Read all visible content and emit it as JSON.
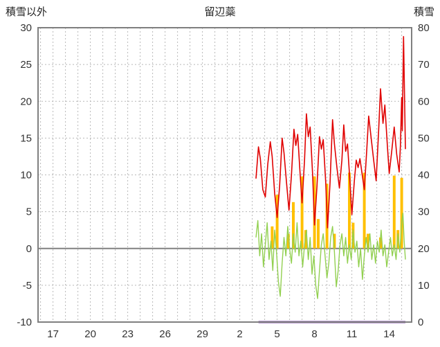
{
  "header": {
    "left_axis_title": "積雪以外",
    "chart_title": "留辺蘂",
    "right_axis_title": "積雪"
  },
  "chart_data": {
    "type": "line",
    "title": "留辺蘂",
    "left_axis": {
      "label": "積雪以外",
      "min": -10,
      "max": 30,
      "tick_step": 5,
      "ticks": [
        30,
        25,
        20,
        15,
        10,
        5,
        0,
        -5,
        -10
      ]
    },
    "right_axis": {
      "label": "積雪",
      "min": 0,
      "max": 80,
      "tick_step": 10,
      "ticks": [
        80,
        70,
        60,
        50,
        40,
        30,
        20,
        10,
        0
      ]
    },
    "x_axis": {
      "min": 15.8,
      "max": 45.8,
      "day_grid_step": 1,
      "tick_positions": [
        17,
        20,
        23,
        26,
        29,
        32,
        35,
        38,
        41,
        44
      ],
      "tick_labels": [
        "17",
        "20",
        "23",
        "26",
        "29",
        "2",
        "5",
        "8",
        "11",
        "14"
      ]
    },
    "grid": {
      "color": "#b8b8b8",
      "dash": "2,3"
    },
    "frame_color": "#7f7f7f",
    "text_color": "#333333",
    "zero_line": {
      "value": 0,
      "color": "#808080",
      "width": 2
    },
    "series": [
      {
        "name": "orange-bars",
        "type": "bar",
        "axis": "left",
        "color": "#ffc000",
        "bar_width_days": 0.22,
        "baseline": 0,
        "bars": [
          [
            34.6,
            3.0
          ],
          [
            35.0,
            7.3
          ],
          [
            35.9,
            2.0
          ],
          [
            36.3,
            6.3
          ],
          [
            37.0,
            9.8
          ],
          [
            37.3,
            2.5
          ],
          [
            38.0,
            9.8
          ],
          [
            38.3,
            4.0
          ],
          [
            39.0,
            8.8
          ],
          [
            39.6,
            2.0
          ],
          [
            40.8,
            10.3
          ],
          [
            41.1,
            3.5
          ],
          [
            42.0,
            10.3
          ],
          [
            42.3,
            2.0
          ],
          [
            43.3,
            1.5
          ],
          [
            44.4,
            9.9
          ],
          [
            44.7,
            2.5
          ],
          [
            45.0,
            9.6
          ]
        ]
      },
      {
        "name": "green-line",
        "type": "line",
        "axis": "left",
        "color": "#92d050",
        "width": 1.4,
        "points": [
          [
            33.3,
            1.5
          ],
          [
            33.45,
            3.8
          ],
          [
            33.6,
            -1.0
          ],
          [
            33.75,
            2.0
          ],
          [
            33.9,
            -2.5
          ],
          [
            34.05,
            0.5
          ],
          [
            34.2,
            3.5
          ],
          [
            34.35,
            -1.5
          ],
          [
            34.5,
            1.0
          ],
          [
            34.65,
            -3.0
          ],
          [
            34.8,
            2.5
          ],
          [
            34.95,
            -0.5
          ],
          [
            35.1,
            -4.5
          ],
          [
            35.25,
            -6.5
          ],
          [
            35.4,
            -2.0
          ],
          [
            35.55,
            1.5
          ],
          [
            35.7,
            -1.0
          ],
          [
            35.85,
            3.0
          ],
          [
            36.0,
            0.0
          ],
          [
            36.15,
            -2.0
          ],
          [
            36.3,
            2.0
          ],
          [
            36.45,
            -0.5
          ],
          [
            36.6,
            3.5
          ],
          [
            36.75,
            -1.0
          ],
          [
            36.9,
            1.0
          ],
          [
            37.05,
            -2.5
          ],
          [
            37.2,
            0.5
          ],
          [
            37.35,
            2.5
          ],
          [
            37.5,
            -1.5
          ],
          [
            37.65,
            1.5
          ],
          [
            37.8,
            -3.5
          ],
          [
            37.95,
            -1.0
          ],
          [
            38.1,
            -5.0
          ],
          [
            38.25,
            -6.8
          ],
          [
            38.4,
            -3.0
          ],
          [
            38.55,
            0.5
          ],
          [
            38.7,
            2.0
          ],
          [
            38.85,
            -1.0
          ],
          [
            39.0,
            -4.0
          ],
          [
            39.15,
            -2.0
          ],
          [
            39.3,
            1.5
          ],
          [
            39.45,
            3.0
          ],
          [
            39.6,
            -0.5
          ],
          [
            39.75,
            -5.2
          ],
          [
            39.9,
            -3.0
          ],
          [
            40.05,
            0.5
          ],
          [
            40.2,
            2.0
          ],
          [
            40.35,
            -1.0
          ],
          [
            40.5,
            1.5
          ],
          [
            40.65,
            -2.0
          ],
          [
            40.8,
            0.5
          ],
          [
            40.95,
            -1.5
          ],
          [
            41.1,
            2.5
          ],
          [
            41.25,
            -0.5
          ],
          [
            41.4,
            1.0
          ],
          [
            41.55,
            -2.5
          ],
          [
            41.7,
            0.0
          ],
          [
            41.85,
            -4.2
          ],
          [
            42.0,
            -1.0
          ],
          [
            42.15,
            1.5
          ],
          [
            42.3,
            -0.5
          ],
          [
            42.45,
            2.0
          ],
          [
            42.6,
            -1.5
          ],
          [
            42.75,
            0.5
          ],
          [
            42.9,
            -2.0
          ],
          [
            43.05,
            1.0
          ],
          [
            43.2,
            -0.5
          ],
          [
            43.35,
            2.5
          ],
          [
            43.5,
            -1.0
          ],
          [
            43.65,
            0.5
          ],
          [
            43.8,
            -2.5
          ],
          [
            43.95,
            -0.5
          ],
          [
            44.1,
            1.5
          ],
          [
            44.25,
            -1.0
          ],
          [
            44.4,
            0.5
          ],
          [
            44.55,
            -1.5
          ],
          [
            44.7,
            2.0
          ],
          [
            44.85,
            -0.5
          ],
          [
            45.0,
            3.5
          ],
          [
            45.1,
            4.8
          ],
          [
            45.2,
            1.0
          ],
          [
            45.3,
            -1.5
          ]
        ]
      },
      {
        "name": "red-line",
        "type": "line",
        "axis": "left",
        "color": "#e00000",
        "width": 1.6,
        "points": [
          [
            33.3,
            9.5
          ],
          [
            33.5,
            13.8
          ],
          [
            33.65,
            12.2
          ],
          [
            33.85,
            8.0
          ],
          [
            34.05,
            7.0
          ],
          [
            34.25,
            11.5
          ],
          [
            34.45,
            14.5
          ],
          [
            34.6,
            12.5
          ],
          [
            34.8,
            7.5
          ],
          [
            35.0,
            4.2
          ],
          [
            35.2,
            8.5
          ],
          [
            35.4,
            15.0
          ],
          [
            35.55,
            13.0
          ],
          [
            35.75,
            9.0
          ],
          [
            35.95,
            5.2
          ],
          [
            36.15,
            10.0
          ],
          [
            36.35,
            16.2
          ],
          [
            36.5,
            14.0
          ],
          [
            36.65,
            15.5
          ],
          [
            36.85,
            10.0
          ],
          [
            37.0,
            6.2
          ],
          [
            37.2,
            12.0
          ],
          [
            37.35,
            18.3
          ],
          [
            37.5,
            15.2
          ],
          [
            37.65,
            16.5
          ],
          [
            37.85,
            10.0
          ],
          [
            38.0,
            3.2
          ],
          [
            38.2,
            8.5
          ],
          [
            38.4,
            15.2
          ],
          [
            38.55,
            13.5
          ],
          [
            38.7,
            14.8
          ],
          [
            38.9,
            9.0
          ],
          [
            39.05,
            2.8
          ],
          [
            39.25,
            9.0
          ],
          [
            39.45,
            17.5
          ],
          [
            39.6,
            14.2
          ],
          [
            39.8,
            11.0
          ],
          [
            40.0,
            8.2
          ],
          [
            40.2,
            12.0
          ],
          [
            40.35,
            16.8
          ],
          [
            40.5,
            13.2
          ],
          [
            40.65,
            14.2
          ],
          [
            40.85,
            9.0
          ],
          [
            41.0,
            4.6
          ],
          [
            41.2,
            9.2
          ],
          [
            41.35,
            12.0
          ],
          [
            41.5,
            11.0
          ],
          [
            41.65,
            12.2
          ],
          [
            41.85,
            9.8
          ],
          [
            42.0,
            8.0
          ],
          [
            42.2,
            13.5
          ],
          [
            42.35,
            18.0
          ],
          [
            42.55,
            15.0
          ],
          [
            42.75,
            12.0
          ],
          [
            42.95,
            9.2
          ],
          [
            43.15,
            16.0
          ],
          [
            43.3,
            21.7
          ],
          [
            43.5,
            17.0
          ],
          [
            43.65,
            19.5
          ],
          [
            43.85,
            14.0
          ],
          [
            44.0,
            10.2
          ],
          [
            44.2,
            13.2
          ],
          [
            44.4,
            16.5
          ],
          [
            44.6,
            12.8
          ],
          [
            44.8,
            10.4
          ],
          [
            44.9,
            14.0
          ],
          [
            45.0,
            20.5
          ],
          [
            45.05,
            16.0
          ],
          [
            45.15,
            28.8
          ],
          [
            45.3,
            13.5
          ]
        ]
      },
      {
        "name": "purple-line",
        "type": "line",
        "axis": "right",
        "color": "#7030a0",
        "width": 3,
        "points": [
          [
            33.5,
            0
          ],
          [
            45.3,
            0
          ]
        ]
      }
    ]
  }
}
